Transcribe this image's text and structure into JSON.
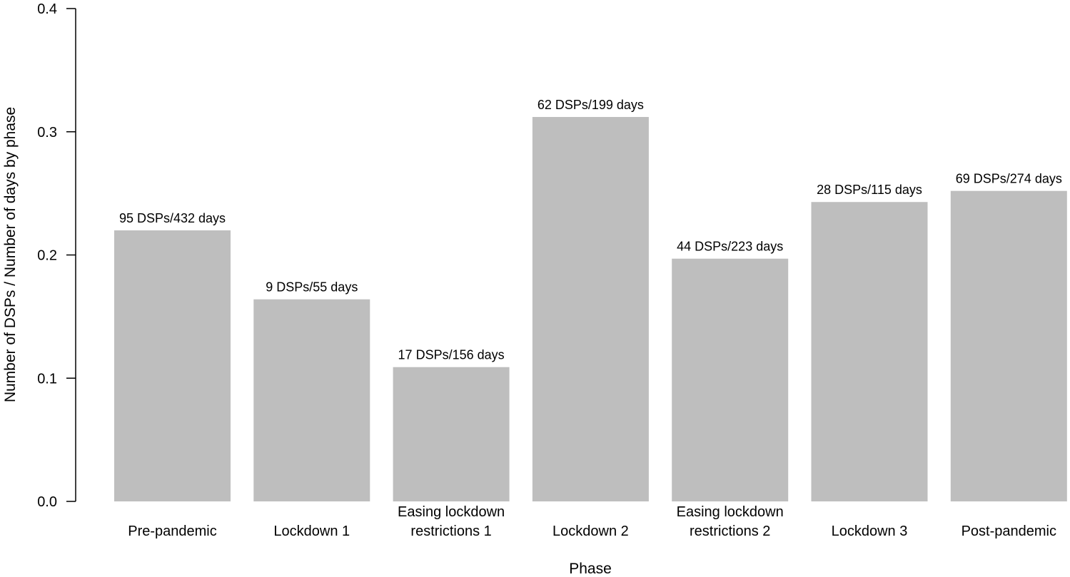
{
  "chart_data": {
    "type": "bar",
    "title": "",
    "xlabel": "Phase",
    "ylabel": "Number of DSPs / Number of days by phase",
    "ylim": [
      0,
      0.4
    ],
    "yticks": [
      "0.0",
      "0.1",
      "0.2",
      "0.3",
      "0.4"
    ],
    "grid": false,
    "legend": "none",
    "bar_color": "#bebebe",
    "categories": [
      [
        "Pre-pandemic"
      ],
      [
        "Lockdown 1"
      ],
      [
        "Easing lockdown",
        "restrictions 1"
      ],
      [
        "Lockdown 2"
      ],
      [
        "Easing lockdown",
        "restrictions 2"
      ],
      [
        "Lockdown 3"
      ],
      [
        "Post-pandemic"
      ]
    ],
    "values": [
      0.22,
      0.164,
      0.109,
      0.312,
      0.197,
      0.243,
      0.252
    ],
    "data_labels": [
      "95 DSPs/432 days",
      "9 DSPs/55 days",
      "17 DSPs/156 days",
      "62 DSPs/199 days",
      "44 DSPs/223 days",
      "28 DSPs/115 days",
      "69 DSPs/274 days"
    ]
  }
}
